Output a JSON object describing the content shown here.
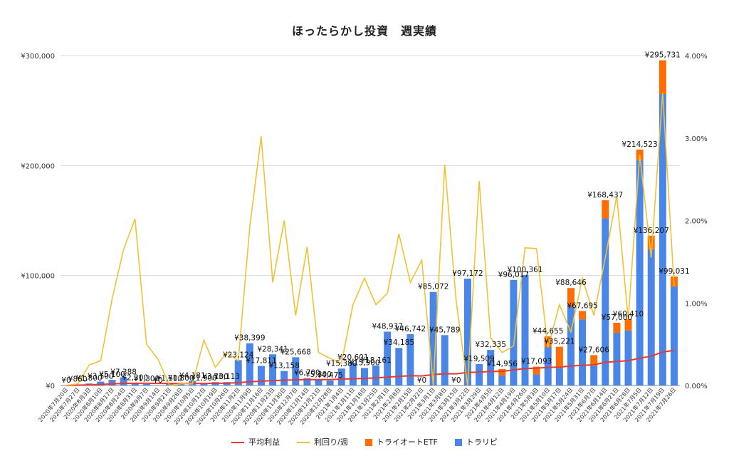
{
  "chart_data": {
    "type": "bar",
    "title": "ほったらかし投資　週実績",
    "categories": [
      "2020年7月20日",
      "2020年7月27日",
      "2020年8月3日",
      "2020年8月10日",
      "2020年8月17日",
      "2020年8月24日",
      "2020年8月31日",
      "2020年9月7日",
      "2020年9月14日",
      "2020年9月21日",
      "2020年9月28日",
      "2020年10月5日",
      "2020年10月12日",
      "2020年10月19日",
      "2020年10月26日",
      "2020年11月2日",
      "2020年11月9日",
      "2020年11月16日",
      "2020年11月23日",
      "2020年11月30日",
      "2020年12月7日",
      "2020年12月14日",
      "2020年12月21日",
      "2020年12月28日",
      "2021年1月4日",
      "2021年1月11日",
      "2021年1月18日",
      "2021年1月25日",
      "2021年2月1日",
      "2021年2月8日",
      "2021年2月15日",
      "2021年2月22日",
      "2021年3月1日",
      "2021年3月8日",
      "2021年3月15日",
      "2021年3月22日",
      "2021年3月29日",
      "2021年4月5日",
      "2021年4月12日",
      "2021年4月19日",
      "2021年4月26日",
      "2021年5月3日",
      "2021年5月10日",
      "2021年5月17日",
      "2021年5月24日",
      "2021年5月31日",
      "2021年6月7日",
      "2021年6月14日",
      "2021年6月21日",
      "2021年6月28日",
      "2021年7月5日",
      "2021年7月12日",
      "2021年7月19日",
      "2021年7月26日"
    ],
    "totals": [
      0,
      860,
      1800,
      3500,
      5100,
      7388,
      2300,
      1300,
      0,
      1500,
      1800,
      4181,
      1900,
      3100,
      3113,
      23124,
      38399,
      17811,
      28341,
      13158,
      25668,
      6700,
      5300,
      4475,
      15380,
      20601,
      15900,
      18161,
      48937,
      34185,
      46742,
      0,
      85072,
      45789,
      0,
      97172,
      19509,
      32335,
      14956,
      96017,
      100361,
      17093,
      44655,
      35221,
      88646,
      67695,
      27606,
      168437,
      57000,
      60410,
      214523,
      136207,
      295731,
      99031
    ],
    "series": [
      {
        "name": "トラリピ",
        "color": "#4a86e8",
        "values": [
          0,
          860,
          1800,
          3500,
          5100,
          7388,
          2300,
          1300,
          0,
          1500,
          1800,
          4181,
          1900,
          3100,
          3113,
          23124,
          38399,
          17811,
          28341,
          13158,
          25668,
          6700,
          5300,
          4475,
          15380,
          20601,
          15900,
          18161,
          48937,
          34185,
          46742,
          0,
          85072,
          45789,
          0,
          97172,
          19509,
          32335,
          9000,
          96017,
          100361,
          10000,
          35000,
          16000,
          72000,
          60000,
          18000,
          152000,
          48000,
          50000,
          205000,
          124000,
          265000,
          90000
        ]
      },
      {
        "name": "トライオートETF",
        "color": "#ff6d01",
        "values": [
          0,
          0,
          0,
          0,
          0,
          0,
          0,
          0,
          0,
          0,
          0,
          0,
          0,
          0,
          0,
          0,
          0,
          0,
          0,
          0,
          0,
          0,
          0,
          0,
          0,
          0,
          0,
          0,
          0,
          0,
          0,
          0,
          0,
          0,
          0,
          0,
          0,
          0,
          5956,
          0,
          0,
          7093,
          9655,
          19221,
          16646,
          7695,
          9606,
          16437,
          9000,
          10410,
          9523,
          12207,
          30731,
          9031
        ]
      },
      {
        "name": "平均利益",
        "color": "#e53935",
        "type": "line",
        "values": [
          0,
          300,
          600,
          1000,
          1500,
          1900,
          2000,
          2000,
          1900,
          1900,
          1800,
          1900,
          1900,
          2000,
          2000,
          2600,
          3400,
          3900,
          4500,
          4800,
          5200,
          5300,
          5400,
          5400,
          5800,
          6100,
          6500,
          6900,
          7600,
          8200,
          8900,
          8700,
          10000,
          10600,
          10600,
          11900,
          12200,
          12800,
          12800,
          14200,
          15400,
          15800,
          16400,
          16800,
          17700,
          18400,
          18700,
          21200,
          21800,
          22600,
          24800,
          26700,
          30400,
          32000
        ]
      },
      {
        "name": "利回り/週",
        "color": "#f1c232",
        "type": "line",
        "axis": "right",
        "values": [
          0,
          0.02,
          0.25,
          0.3,
          1.05,
          1.65,
          2.02,
          0.5,
          0.32,
          0,
          0.02,
          0.02,
          0.55,
          0.22,
          0.4,
          0.3,
          1.92,
          3.02,
          1.25,
          2.0,
          0.85,
          1.68,
          0.4,
          0.33,
          0.27,
          0.98,
          1.3,
          0.98,
          1.12,
          1.84,
          1.25,
          1.52,
          0,
          2.68,
          1.02,
          0,
          2.48,
          0.58,
          0.4,
          0.48,
          1.67,
          1.66,
          0.46,
          0.98,
          0.65,
          1.3,
          0.85,
          1.55,
          2.3,
          0.8,
          2.8,
          1.55,
          3.55,
          1.2
        ]
      }
    ],
    "data_labels": [
      "¥0",
      "¥860",
      "¥1,800",
      "¥3,500",
      "¥5,100",
      "¥7,388",
      "¥2,300",
      "¥1,300",
      "¥0",
      "¥1,500",
      "¥1,800",
      "¥4,181",
      "¥1,900",
      "¥3,100",
      "¥3,113",
      "¥23,124",
      "¥38,399",
      "¥17,811",
      "¥28,341",
      "¥13,158",
      "¥25,668",
      "¥6,700",
      "¥5,300",
      "¥4,475",
      "¥15,380",
      "¥20,601",
      "¥15,900",
      "¥18,161",
      "¥48,937",
      "¥34,185",
      "¥46,742",
      "¥0",
      "¥85,072",
      "¥45,789",
      "¥0",
      "¥97,172",
      "¥19,509",
      "¥32,335",
      "¥14,956",
      "¥96,017",
      "¥100,361",
      "¥17,093",
      "¥44,655",
      "¥35,221",
      "¥88,646",
      "¥67,695",
      "¥27,606",
      "¥168,437",
      "¥57,000",
      "¥60,410",
      "¥214,523",
      "¥136,207",
      "¥295,731",
      "¥99,031"
    ],
    "y_left": {
      "ticks": [
        "¥0",
        "¥100,000",
        "¥200,000",
        "¥300,000"
      ],
      "ylim": [
        0,
        300000
      ]
    },
    "y_right": {
      "ticks": [
        "0.00%",
        "1.00%",
        "2.00%",
        "3.00%",
        "4.00%"
      ],
      "ylim": [
        0,
        4
      ]
    },
    "legend": {
      "position": "bottom",
      "items": [
        {
          "label": "平均利益",
          "kind": "line",
          "color": "#e53935"
        },
        {
          "label": "利回り/週",
          "kind": "line",
          "color": "#f1c232"
        },
        {
          "label": "トライオートETF",
          "kind": "box",
          "color": "#ff6d01"
        },
        {
          "label": "トラリピ",
          "kind": "box",
          "color": "#4a86e8"
        }
      ]
    },
    "grid": true
  }
}
